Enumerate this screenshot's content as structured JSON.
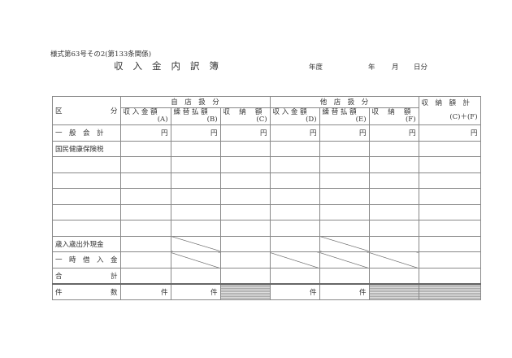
{
  "form_number": "様式第63号その2(第133条関係)",
  "title": "収入金内訳簿",
  "period": {
    "fiscal_year": "年度",
    "year": "年",
    "month": "月",
    "day_part": "日分"
  },
  "header": {
    "category": [
      "区",
      "分"
    ],
    "own_store": "自　店　扱　分",
    "other_store": "他　店　扱　分",
    "columns": [
      {
        "label": "収 入 金 額",
        "code": "(A)"
      },
      {
        "label": "繰 替 払 額",
        "code": "(B)"
      },
      {
        "label": "収　 納　 額",
        "code": "(C)"
      },
      {
        "label": "収 入 金 額",
        "code": "(D)"
      },
      {
        "label": "繰 替 払 額",
        "code": "(E)"
      },
      {
        "label": "収　 納　 額",
        "code": "(F)"
      }
    ],
    "total": {
      "label": "収　納　額　計",
      "code": "(C)＋(F)"
    }
  },
  "rows": {
    "general": "一　般　会　計",
    "national_health": "国民健康保険税",
    "non_budget_cash": "歳入歳出外現金",
    "temporary_loan": "一　時　借　入　金",
    "sum": [
      "合",
      "計"
    ],
    "count": [
      "件",
      "数"
    ]
  },
  "units": {
    "yen": "円",
    "count": "件"
  }
}
